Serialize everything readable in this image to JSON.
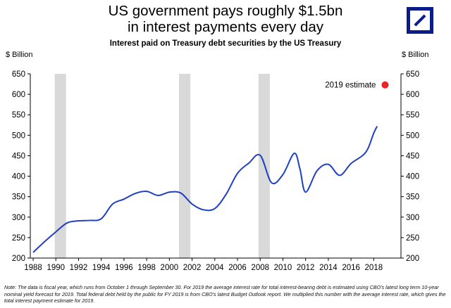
{
  "header": {
    "title_line1": "US government pays roughly $1.5bn",
    "title_line2": "in interest payments every day",
    "subtitle": "Interest paid on Treasury debt securities by the US Treasury"
  },
  "logo": {
    "name": "deutsche-bank-logo"
  },
  "colors": {
    "line": "#1f3fc4",
    "recession": "#d9d9d9",
    "estimate": "#e8262a"
  },
  "chart_data": {
    "type": "line",
    "title": "Interest paid on Treasury debt securities by the US Treasury",
    "ylabel_left": "$ Billion",
    "ylabel_right": "$ Billion",
    "xlim": [
      1987.75,
      2020.4
    ],
    "ylim": [
      200,
      650
    ],
    "x_ticks": [
      1988,
      1990,
      1992,
      1994,
      1996,
      1998,
      2000,
      2002,
      2004,
      2006,
      2008,
      2010,
      2012,
      2014,
      2016,
      2018
    ],
    "y_ticks": [
      200,
      250,
      300,
      350,
      400,
      450,
      500,
      550,
      600,
      650
    ],
    "recession_bands": [
      [
        1989.9,
        1990.9
      ],
      [
        2000.85,
        2001.85
      ],
      [
        2007.85,
        2008.85
      ]
    ],
    "series": [
      {
        "name": "Interest paid",
        "x": [
          1988,
          1989,
          1990,
          1991,
          1992,
          1993,
          1994,
          1995,
          1996,
          1997,
          1998,
          1999,
          2000,
          2001,
          2002,
          2003,
          2004,
          2005,
          2006,
          2007,
          2008,
          2009,
          2010,
          2011,
          2011.5,
          2012,
          2013,
          2014,
          2015,
          2016,
          2017,
          2017.5,
          2018,
          2018.3
        ],
        "y": [
          214,
          240,
          264,
          286,
          291,
          292,
          296,
          332,
          344,
          358,
          363,
          353,
          361,
          359,
          332,
          318,
          321,
          356,
          407,
          432,
          451,
          384,
          404,
          456,
          418,
          361,
          413,
          429,
          402,
          431,
          450,
          468,
          505,
          522
        ]
      }
    ],
    "annotations": [
      {
        "label": "2019 estimate",
        "x": 2019.0,
        "y": 623
      }
    ]
  },
  "note": "Note: The data is fiscal year, which runs from October 1 through September 30. For 2019 the average interest rate for total interest-bearing debt is estimated using CBO's latest long term 10-year nominal yield forecast for 2019. Total federal debt held by the public for FY 2019 is from CBO's latest Budget Outlook report. We multiplied this number with the average interest rate, which gives the total interest payment estimate for 2019."
}
